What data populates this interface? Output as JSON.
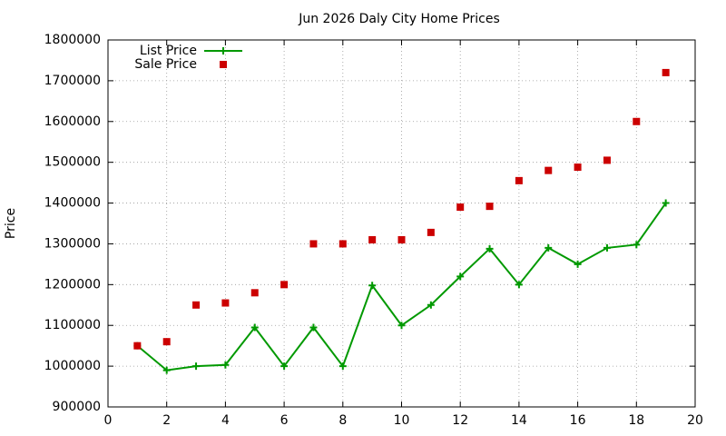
{
  "chart_data": {
    "type": "line",
    "title": "Jun 2026 Daly City Home Prices",
    "y_label": "Price",
    "x": [
      1,
      2,
      3,
      4,
      5,
      6,
      7,
      8,
      9,
      10,
      11,
      12,
      13,
      14,
      15,
      16,
      17,
      18,
      19
    ],
    "series": [
      {
        "name": "List Price",
        "color": "#009900",
        "mode": "linespoints",
        "values": [
          1050000,
          990000,
          1000000,
          1003000,
          1095000,
          1000000,
          1095000,
          1000000,
          1198000,
          1100000,
          1150000,
          1220000,
          1288000,
          1200000,
          1290000,
          1250000,
          1290000,
          1298000,
          1400000
        ]
      },
      {
        "name": "Sale Price",
        "color": "#cc0000",
        "mode": "points",
        "values": [
          1050000,
          1060000,
          1150000,
          1155000,
          1180000,
          1200000,
          1300000,
          1300000,
          1310000,
          1310000,
          1328000,
          1390000,
          1392000,
          1455000,
          1480000,
          1488000,
          1505000,
          1600000,
          1720000
        ]
      }
    ],
    "xlim": [
      0,
      20
    ],
    "xticks": [
      0,
      2,
      4,
      6,
      8,
      10,
      12,
      14,
      16,
      18,
      20
    ],
    "ylim": [
      900000,
      1800000
    ],
    "yticks": [
      900000,
      1000000,
      1100000,
      1200000,
      1300000,
      1400000,
      1500000,
      1600000,
      1700000,
      1800000
    ],
    "grid": true,
    "legend": "top-left"
  }
}
